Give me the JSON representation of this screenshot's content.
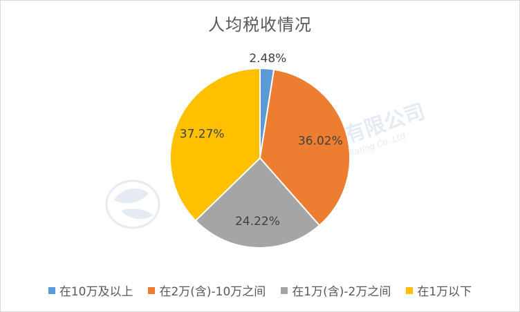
{
  "chart_data": {
    "type": "pie",
    "title": "人均税收情况",
    "categories": [
      "在10万及以上",
      "在2万(含)-10万之间",
      "在1万(含)-2万之间",
      "在1万以下"
    ],
    "values": [
      2.48,
      36.02,
      24.22,
      37.27
    ],
    "labels": [
      "2.48%",
      "36.02%",
      "24.22%",
      "37.27%"
    ],
    "colors": [
      "#5b9bd5",
      "#ed7d31",
      "#a5a5a5",
      "#ffc000"
    ],
    "legend_position": "bottom",
    "start_angle": "12 o'clock",
    "direction": "clockwise"
  },
  "watermark": {
    "text_cn": "联洲国际信用评级有限公司",
    "text_en": "United Continental International Credit Rating Co.,Ltd"
  }
}
